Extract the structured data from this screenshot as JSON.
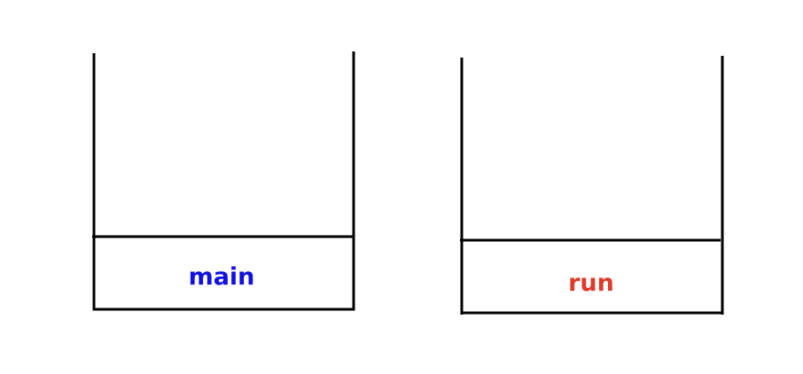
{
  "stacks": [
    {
      "frames": [
        {
          "label": "main",
          "color": "#1010e0"
        }
      ]
    },
    {
      "frames": [
        {
          "label": "run",
          "color": "#e03a2a"
        }
      ]
    }
  ],
  "colors": {
    "outline": "#000000",
    "background": "#ffffff"
  }
}
